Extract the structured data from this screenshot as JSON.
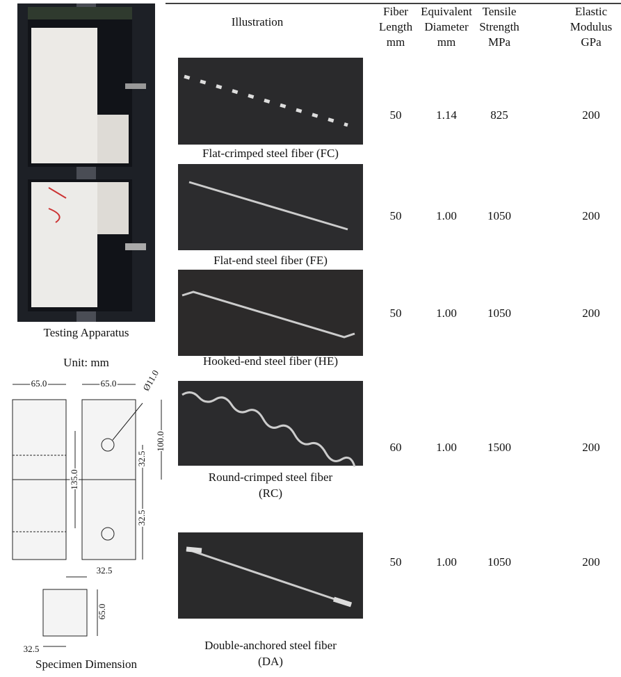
{
  "left": {
    "photo_caption": "Testing Apparatus",
    "unit": "Unit: mm",
    "dimensions": [
      "65.0",
      "65.0",
      "Ø11.0",
      "32.5",
      "100.0",
      "135.0",
      "32.5",
      "32.5",
      "65.0",
      "32.5"
    ],
    "drawing_caption": "Specimen Dimension"
  },
  "table": {
    "header": [
      {
        "lines": [
          "Illustration"
        ]
      },
      {
        "lines": [
          "Fiber",
          "Length",
          "mm"
        ]
      },
      {
        "lines": [
          "Equivalent",
          "Diameter",
          "mm"
        ]
      },
      {
        "lines": [
          "Tensile",
          "Strength",
          "MPa"
        ]
      },
      {
        "lines": [
          "Elastic",
          "Modulus",
          "GPa"
        ]
      }
    ],
    "rows": [
      {
        "caption": [
          "Flat-crimped steel fiber (FC)"
        ],
        "values": [
          "50",
          "1.14",
          "825",
          "200"
        ]
      },
      {
        "caption": [
          "Flat-end steel fiber (FE)"
        ],
        "values": [
          "50",
          "1.00",
          "1050",
          "200"
        ]
      },
      {
        "caption": [
          "Hooked-end steel fiber (HE)"
        ],
        "values": [
          "50",
          "1.00",
          "1050",
          "200"
        ]
      },
      {
        "caption": [
          "Round-crimped steel fiber",
          "(RC)"
        ],
        "values": [
          "60",
          "1.00",
          "1500",
          "200"
        ]
      },
      {
        "caption": [
          "Double-anchored steel fiber",
          "(DA)"
        ],
        "values": [
          "50",
          "1.00",
          "1050",
          "200"
        ]
      }
    ]
  }
}
